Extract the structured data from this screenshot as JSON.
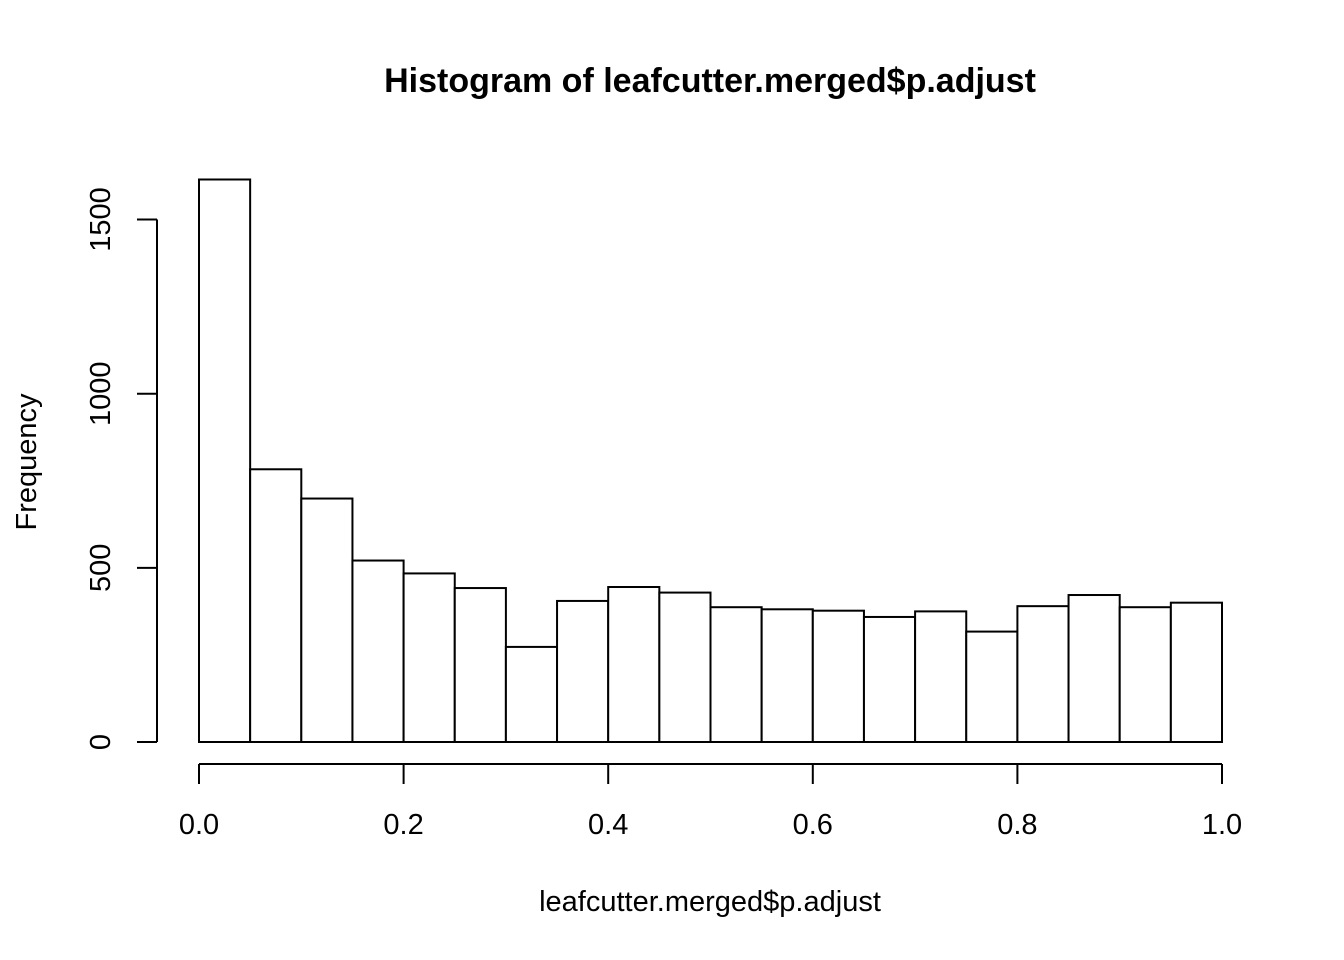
{
  "chart_data": {
    "type": "bar",
    "title": "Histogram of leafcutter.merged$p.adjust",
    "xlabel": "leafcutter.merged$p.adjust",
    "ylabel": "Frequency",
    "bin_edges": [
      0.0,
      0.05,
      0.1,
      0.15,
      0.2,
      0.25,
      0.3,
      0.35,
      0.4,
      0.45,
      0.5,
      0.55,
      0.6,
      0.65,
      0.7,
      0.75,
      0.8,
      0.85,
      0.9,
      0.95,
      1.0
    ],
    "values": [
      1615,
      783,
      699,
      521,
      484,
      442,
      273,
      405,
      445,
      429,
      387,
      381,
      377,
      359,
      375,
      317,
      390,
      422,
      387,
      400
    ],
    "xlim": [
      0,
      1
    ],
    "ylim": [
      0,
      1615
    ],
    "x_ticks": [
      {
        "value": 0.0,
        "label": "0.0"
      },
      {
        "value": 0.2,
        "label": "0.2"
      },
      {
        "value": 0.4,
        "label": "0.4"
      },
      {
        "value": 0.6,
        "label": "0.6"
      },
      {
        "value": 0.8,
        "label": "0.8"
      },
      {
        "value": 1.0,
        "label": "1.0"
      }
    ],
    "y_ticks": [
      {
        "value": 0,
        "label": "0"
      },
      {
        "value": 500,
        "label": "500"
      },
      {
        "value": 1000,
        "label": "1000"
      },
      {
        "value": 1500,
        "label": "1500"
      }
    ],
    "grid": false,
    "legend": "none",
    "colors": {
      "bar_fill": "#ffffff",
      "bar_stroke": "#000000",
      "text": "#000000"
    }
  }
}
